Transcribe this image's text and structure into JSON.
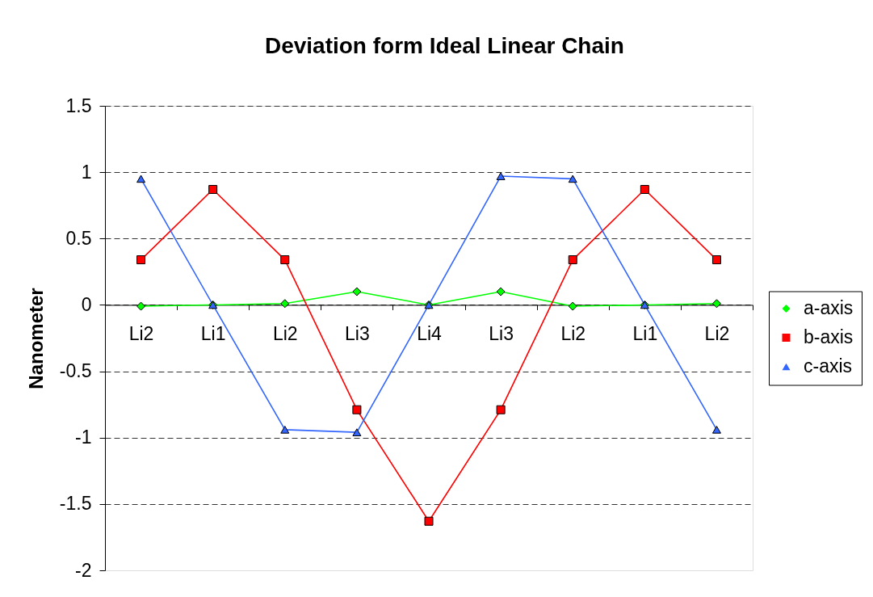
{
  "chart_data": {
    "type": "line",
    "title": "Deviation form Ideal Linear Chain",
    "ylabel": "Nanometer",
    "categories": [
      "Li2",
      "Li1",
      "Li2",
      "Li3",
      "Li4",
      "Li3",
      "Li2",
      "Li1",
      "Li2"
    ],
    "series": [
      {
        "name": "a-axis",
        "color": "#00ff00",
        "marker": "diamond",
        "values": [
          -0.01,
          0,
          0.01,
          0.1,
          0,
          0.1,
          -0.01,
          0,
          0.01
        ]
      },
      {
        "name": "b-axis",
        "color": "#ff0000",
        "marker": "square",
        "values": [
          0.34,
          0.87,
          0.34,
          -0.79,
          -1.63,
          -0.79,
          0.34,
          0.87,
          0.34
        ]
      },
      {
        "name": "c-axis",
        "color": "#3366ff",
        "marker": "triangle",
        "values": [
          0.95,
          0,
          -0.94,
          -0.96,
          0,
          0.97,
          0.95,
          0,
          -0.94
        ]
      }
    ],
    "ylim": [
      -2,
      1.5
    ],
    "yticks": [
      -2,
      -1.5,
      -1,
      -0.5,
      0,
      0.5,
      1,
      1.5
    ],
    "grid": "y",
    "legend": "right",
    "line_style": "solid"
  }
}
